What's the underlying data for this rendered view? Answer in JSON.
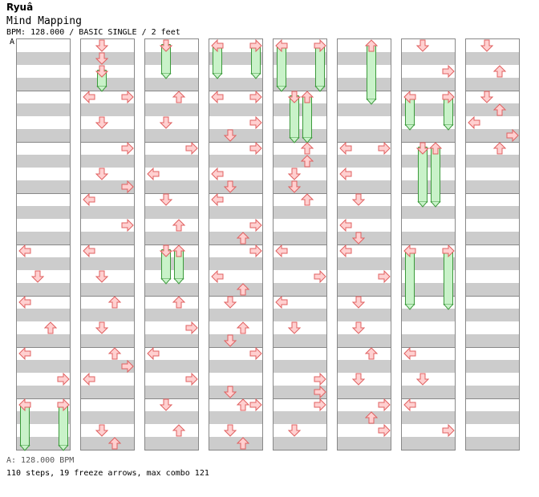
{
  "header": {
    "artist": "Ryuâ",
    "title": "Mind Mapping",
    "meta": "BPM: 128.000 / BASIC SINGLE / 2 feet",
    "bpm_marker": "A"
  },
  "footer": {
    "bpm_legend": "A: 128.000 BPM",
    "stats": "110 steps, 19 freeze arrows, max combo 121"
  },
  "colors": {
    "arrow_fill": "#ffd0d0",
    "arrow_stroke": "#e06060",
    "freeze_fill": "#c9f2c9",
    "freeze_stroke": "#3b9a3b",
    "stripe": "#cccccc",
    "bpm_line": "#6b8fd6"
  },
  "lanes": [
    "left",
    "down",
    "up",
    "right"
  ],
  "arrow_icons": {
    "left": "arrow-left-icon",
    "down": "arrow-down-icon",
    "up": "arrow-up-icon",
    "right": "arrow-right-icon"
  }
}
